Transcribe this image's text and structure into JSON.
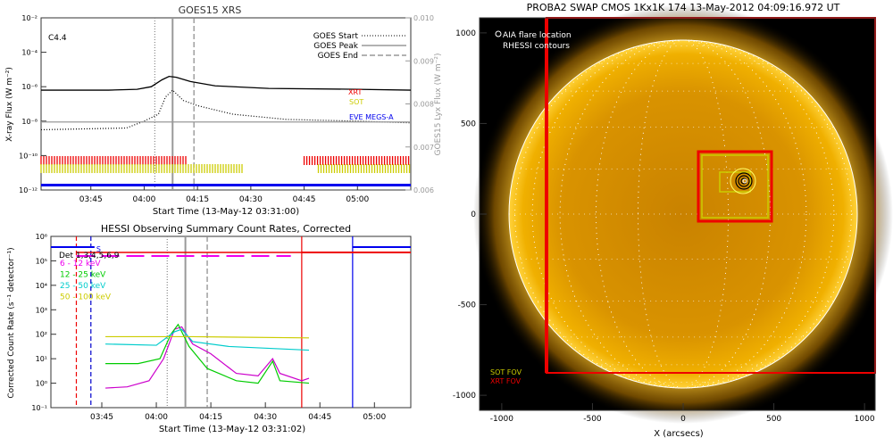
{
  "chart_data": [
    {
      "type": "line",
      "title": "GOES15 XRS",
      "xlabel": "Start Time (13-May-12 03:31:00)",
      "ylabel": "X-ray Flux (W m⁻²)",
      "ylabel_right": "GOES15 Lyx Flux (W m⁻²)",
      "flare_class": "C4.4",
      "x_ticks": [
        "03:45",
        "04:00",
        "04:15",
        "04:30",
        "04:45",
        "05:00"
      ],
      "y_ticks": [
        "10⁻²",
        "10⁻⁴",
        "10⁻⁶",
        "10⁻⁸",
        "10⁻¹⁰",
        "10⁻¹²"
      ],
      "y_ticks_right": [
        "0.010",
        "0.009",
        "0.008",
        "0.007",
        "0.006"
      ],
      "ylim": [
        -12,
        -2
      ],
      "legend": [
        "GOES Start",
        "GOES Peak",
        "GOES End"
      ],
      "instrument_labels": [
        {
          "name": "XRT",
          "color": "#ee0000"
        },
        {
          "name": "SOT",
          "color": "#cccc00"
        },
        {
          "name": "EVE MEGS-A",
          "color": "#0000ee"
        }
      ],
      "event_lines": {
        "start": "04:03",
        "peak": "04:08",
        "end": "04:14"
      },
      "series": [
        {
          "color": "#000000",
          "points": [
            [
              "03:31",
              -6.2
            ],
            [
              "03:50",
              -6.2
            ],
            [
              "03:58",
              -6.15
            ],
            [
              "04:02",
              -6.0
            ],
            [
              "04:05",
              -5.6
            ],
            [
              "04:07",
              -5.4
            ],
            [
              "04:09",
              -5.45
            ],
            [
              "04:13",
              -5.7
            ],
            [
              "04:20",
              -5.95
            ],
            [
              "04:35",
              -6.1
            ],
            [
              "05:00",
              -6.15
            ],
            [
              "05:15",
              -6.2
            ]
          ]
        },
        {
          "color": "#000000",
          "dotted": true,
          "points": [
            [
              "03:31",
              -8.5
            ],
            [
              "03:55",
              -8.4
            ],
            [
              "04:00",
              -8.0
            ],
            [
              "04:04",
              -7.6
            ],
            [
              "04:06",
              -6.6
            ],
            [
              "04:08",
              -6.2
            ],
            [
              "04:11",
              -6.8
            ],
            [
              "04:15",
              -7.1
            ],
            [
              "04:25",
              -7.6
            ],
            [
              "04:40",
              -7.9
            ],
            [
              "05:00",
              -8.0
            ],
            [
              "05:15",
              -8.1
            ]
          ]
        },
        {
          "color": "#999999",
          "points": [
            [
              "03:31",
              -8.05
            ],
            [
              "05:15",
              -8.05
            ]
          ]
        }
      ],
      "coverage_bars": [
        {
          "name": "XRT",
          "color": "#ee0000",
          "ranges": [
            [
              "03:31",
              "04:12"
            ],
            [
              "04:45",
              "05:15"
            ]
          ]
        },
        {
          "name": "SOT",
          "color": "#cccc00",
          "ranges": [
            [
              "03:31",
              "04:28"
            ],
            [
              "04:49",
              "05:15"
            ]
          ]
        },
        {
          "name": "EVE MEGS-A",
          "color": "#0000ee",
          "ranges": [
            [
              "03:31",
              "05:15"
            ]
          ]
        }
      ]
    },
    {
      "type": "line",
      "title": "HESSI Observing Summary Count Rates, Corrected",
      "xlabel": "Start Time (13-May-12 03:31:02)",
      "ylabel": "Corrected Count Rate (s⁻¹ detector⁻¹)",
      "x_ticks": [
        "03:45",
        "04:00",
        "04:15",
        "04:30",
        "04:45",
        "05:00"
      ],
      "y_ticks": [
        "10⁻¹",
        "10⁰",
        "10¹",
        "10²",
        "10³",
        "10⁴",
        "10⁵",
        "10⁶"
      ],
      "ylim": [
        -1,
        6
      ],
      "state_labels": [
        "S",
        "Det 1,3,4,5,6,9"
      ],
      "legend": [
        {
          "name": "3 - 6 keV",
          "color": "#ee00ee"
        },
        {
          "name": "6 - 12 keV",
          "color": "#ee00ee"
        },
        {
          "name": "12 - 25 keV",
          "color": "#00cc00"
        },
        {
          "name": "25 - 50 keV",
          "color": "#00cccc"
        },
        {
          "name": "50 - 100 keV",
          "color": "#cccc00"
        }
      ],
      "series": [
        {
          "name": "6 - 12 keV",
          "color": "#cc00cc",
          "points": [
            [
              "03:46",
              -0.2
            ],
            [
              "03:52",
              -0.15
            ],
            [
              "03:58",
              0.1
            ],
            [
              "04:02",
              1.0
            ],
            [
              "04:05",
              2.2
            ],
            [
              "04:07",
              2.3
            ],
            [
              "04:10",
              1.6
            ],
            [
              "04:15",
              1.2
            ],
            [
              "04:22",
              0.4
            ],
            [
              "04:28",
              0.3
            ],
            [
              "04:32",
              1.0
            ],
            [
              "04:34",
              0.4
            ],
            [
              "04:40",
              0.1
            ],
            [
              "04:42",
              0.2
            ]
          ]
        },
        {
          "name": "12 - 25 keV",
          "color": "#00cc00",
          "points": [
            [
              "03:46",
              0.8
            ],
            [
              "03:55",
              0.8
            ],
            [
              "04:01",
              1.0
            ],
            [
              "04:04",
              2.0
            ],
            [
              "04:06",
              2.4
            ],
            [
              "04:09",
              1.5
            ],
            [
              "04:14",
              0.6
            ],
            [
              "04:22",
              0.1
            ],
            [
              "04:28",
              0.0
            ],
            [
              "04:32",
              0.9
            ],
            [
              "04:34",
              0.1
            ],
            [
              "04:42",
              0.0
            ]
          ]
        },
        {
          "name": "25 - 50 keV",
          "color": "#00cccc",
          "points": [
            [
              "03:46",
              1.6
            ],
            [
              "04:00",
              1.55
            ],
            [
              "04:05",
              2.1
            ],
            [
              "04:07",
              2.2
            ],
            [
              "04:10",
              1.7
            ],
            [
              "04:20",
              1.5
            ],
            [
              "04:42",
              1.35
            ]
          ]
        },
        {
          "name": "50 - 100 keV",
          "color": "#cccc00",
          "points": [
            [
              "03:46",
              1.9
            ],
            [
              "04:10",
              1.9
            ],
            [
              "04:42",
              1.85
            ]
          ]
        }
      ],
      "event_lines": {
        "start": "04:03",
        "peak": "04:08",
        "end": "04:14"
      }
    }
  ],
  "solar_image": {
    "title": "PROBA2 SWAP CMOS 1Kx1K 174 13-May-2012 04:09:16.972 UT",
    "xlabel": "X (arcsecs)",
    "x_ticks": [
      "-1000",
      "-500",
      "0",
      "500",
      "1000"
    ],
    "y_ticks": [
      "1000",
      "500",
      "0",
      "-500",
      "-1000"
    ],
    "legend": [
      "AIA flare location",
      "RHESSI contours"
    ],
    "fov_labels": [
      {
        "name": "SOT FOV",
        "color": "#cccc00"
      },
      {
        "name": "XRT FOV",
        "color": "#ee0000"
      }
    ]
  }
}
